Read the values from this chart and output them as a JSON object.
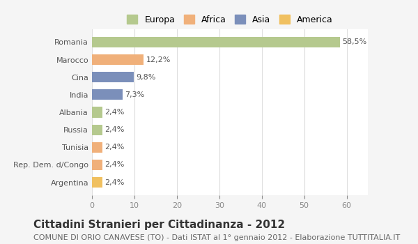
{
  "categories": [
    "Romania",
    "Marocco",
    "Cina",
    "India",
    "Albania",
    "Russia",
    "Tunisia",
    "Rep. Dem. d/Congo",
    "Argentina"
  ],
  "values": [
    58.5,
    12.2,
    9.8,
    7.3,
    2.4,
    2.4,
    2.4,
    2.4,
    2.4
  ],
  "labels": [
    "58,5%",
    "12,2%",
    "9,8%",
    "7,3%",
    "2,4%",
    "2,4%",
    "2,4%",
    "2,4%",
    "2,4%"
  ],
  "colors": [
    "#b5c98e",
    "#f0b07a",
    "#7b8fba",
    "#7b8fba",
    "#b5c98e",
    "#b5c98e",
    "#f0b07a",
    "#f0b07a",
    "#f0c060"
  ],
  "legend_labels": [
    "Europa",
    "Africa",
    "Asia",
    "America"
  ],
  "legend_colors": [
    "#b5c98e",
    "#f0b07a",
    "#7b8fba",
    "#f0c060"
  ],
  "xlim": [
    0,
    65
  ],
  "xticks": [
    0,
    10,
    20,
    30,
    40,
    50,
    60
  ],
  "title": "Cittadini Stranieri per Cittadinanza - 2012",
  "subtitle": "COMUNE DI ORIO CANAVESE (TO) - Dati ISTAT al 1° gennaio 2012 - Elaborazione TUTTITALIA.IT",
  "bg_color": "#f5f5f5",
  "bar_bg_color": "#ffffff",
  "grid_color": "#dddddd",
  "title_fontsize": 11,
  "subtitle_fontsize": 8,
  "label_fontsize": 8,
  "tick_fontsize": 8
}
